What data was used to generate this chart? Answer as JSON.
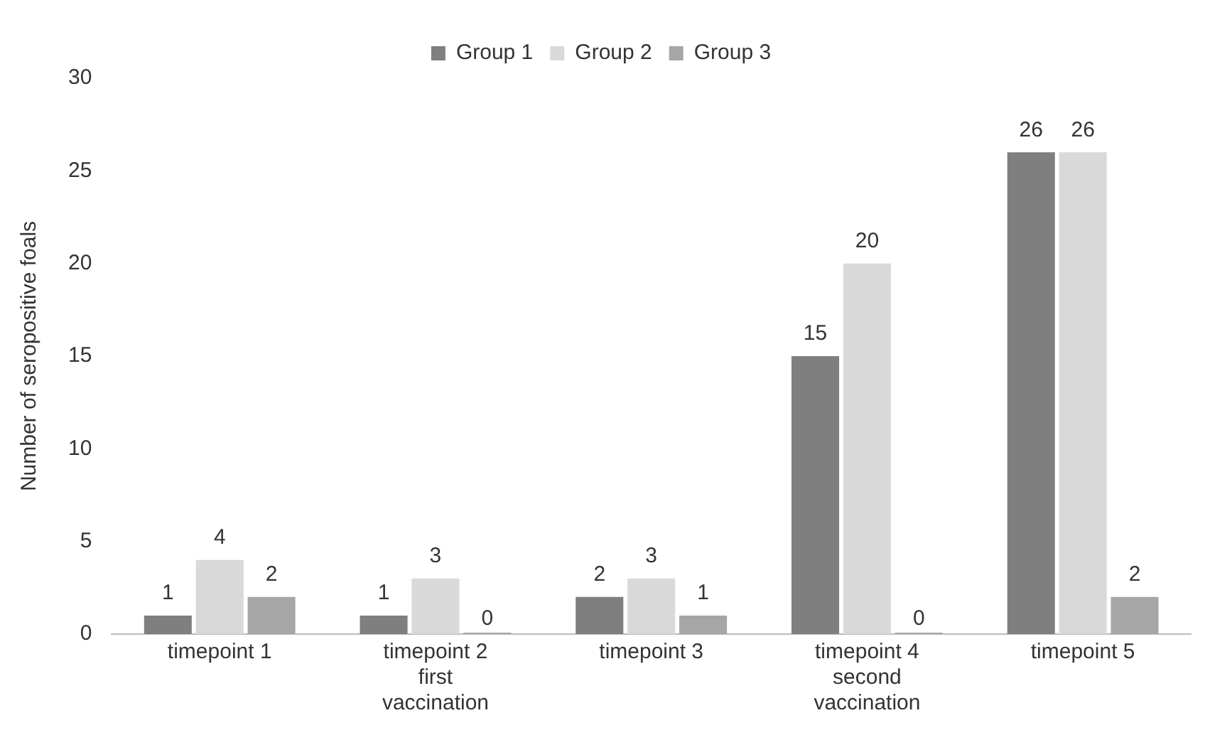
{
  "chart_data": {
    "type": "bar",
    "ylabel": "Number of seropositive foals",
    "categories": [
      "timepoint 1",
      "timepoint 2\nfirst\nvaccination",
      "timepoint 3",
      "timepoint 4\nsecond\nvaccination",
      "timepoint 5"
    ],
    "series": [
      {
        "name": "Group 1",
        "color": "#7f7f7f",
        "values": [
          1,
          1,
          2,
          15,
          26
        ]
      },
      {
        "name": "Group 2",
        "color": "#d9d9d9",
        "values": [
          4,
          3,
          3,
          20,
          26
        ]
      },
      {
        "name": "Group 3",
        "color": "#a6a6a6",
        "values": [
          2,
          0,
          1,
          0,
          2
        ]
      }
    ],
    "ylim": [
      0,
      30
    ],
    "yticks": [
      0,
      5,
      10,
      15,
      20,
      25,
      30
    ],
    "grid": false,
    "legend": "top",
    "data_labels": true
  }
}
